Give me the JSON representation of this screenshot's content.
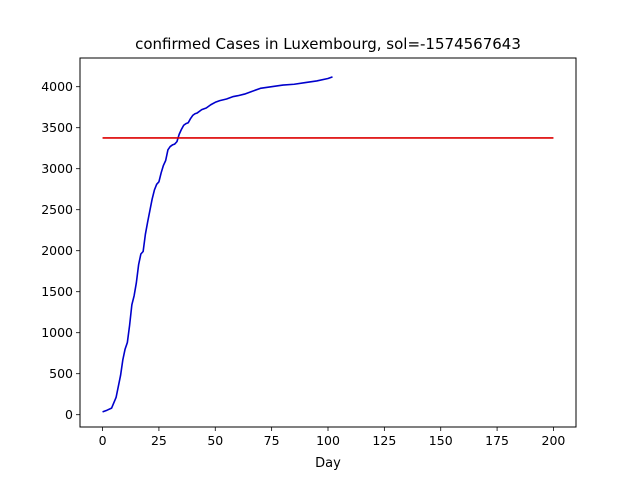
{
  "chart_data": {
    "type": "line",
    "title": "confirmed Cases in Luxembourg, sol=-1574567643",
    "xlabel": "Day",
    "ylabel": "",
    "xlim": [
      -10,
      210
    ],
    "ylim": [
      -150,
      4350
    ],
    "xticks": [
      0,
      25,
      50,
      75,
      100,
      125,
      150,
      175,
      200
    ],
    "yticks": [
      0,
      500,
      1000,
      1500,
      2000,
      2500,
      3000,
      3500,
      4000
    ],
    "grid": false,
    "series": [
      {
        "color": "#0000cc",
        "x": [
          0,
          2,
          4,
          6,
          8,
          9,
          10,
          11,
          12,
          13,
          14,
          15,
          16,
          17,
          18,
          19,
          20,
          21,
          22,
          23,
          24,
          25,
          26,
          27,
          28,
          29,
          30,
          31,
          32,
          33,
          34,
          35,
          36,
          37,
          38,
          39,
          40,
          41,
          42,
          44,
          46,
          48,
          50,
          52,
          55,
          58,
          60,
          63,
          66,
          70,
          75,
          80,
          85,
          90,
          95,
          100,
          102
        ],
        "y": [
          35,
          55,
          80,
          210,
          480,
          670,
          800,
          880,
          1090,
          1340,
          1450,
          1610,
          1830,
          1960,
          1990,
          2200,
          2350,
          2490,
          2630,
          2740,
          2810,
          2840,
          2950,
          3040,
          3100,
          3230,
          3270,
          3290,
          3300,
          3330,
          3420,
          3480,
          3530,
          3550,
          3560,
          3610,
          3650,
          3670,
          3680,
          3720,
          3740,
          3780,
          3810,
          3830,
          3850,
          3880,
          3890,
          3910,
          3940,
          3980,
          4000,
          4020,
          4030,
          4050,
          4070,
          4100,
          4120
        ]
      },
      {
        "color": "#dd0000",
        "x": [
          0,
          200
        ],
        "y": [
          3375,
          3375
        ]
      }
    ]
  }
}
